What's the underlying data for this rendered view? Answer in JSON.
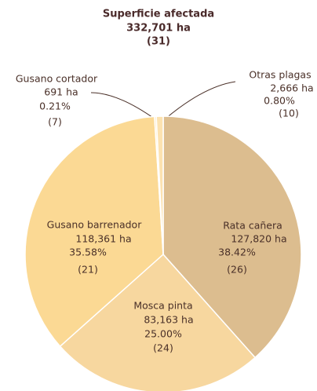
{
  "chart_data": {
    "type": "pie",
    "title": "Superficie afectada",
    "subtitle": "332,701 ha",
    "note": "(31)",
    "categories": [
      "Rata cañera",
      "Mosca pinta",
      "Gusano barrenador",
      "Gusano cortador",
      "Otras plagas"
    ],
    "values": [
      127820,
      83163,
      118361,
      691,
      2666
    ],
    "value_labels": [
      "127,820 ha",
      "83,163 ha",
      "118,361 ha",
      "691  ha",
      "2,666 ha"
    ],
    "percents": [
      38.42,
      25.0,
      35.58,
      0.21,
      0.8
    ],
    "percent_labels": [
      "38.42%",
      "25.00%",
      "35.58%",
      "0.21%",
      "0.80%"
    ],
    "counts": [
      26,
      24,
      21,
      7,
      10
    ],
    "count_labels": [
      "(26)",
      "(24)",
      "(21)",
      "(7)",
      "(10)"
    ],
    "colors": [
      "#dcbd8f",
      "#f7d79f",
      "#fbd994",
      "#fde6b8",
      "#fce2b0"
    ]
  }
}
